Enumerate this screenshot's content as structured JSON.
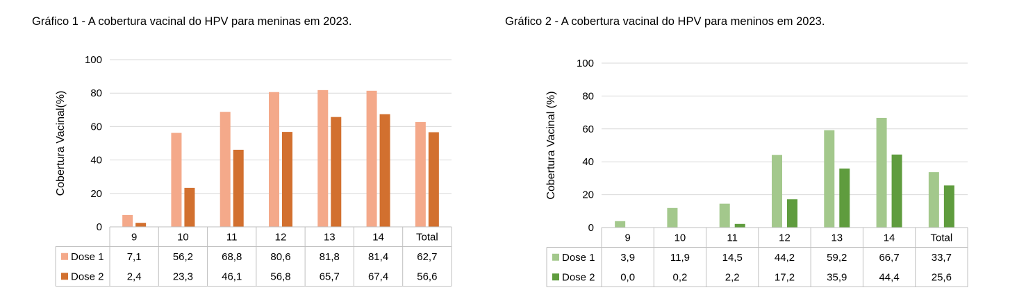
{
  "chart_data": [
    {
      "type": "bar",
      "title": "Gráfico 1 - A cobertura vacinal do HPV para meninas em 2023.",
      "ylabel": "Cobertura Vacinal(%)",
      "xlabel": "",
      "ylim": [
        0,
        100
      ],
      "yticks": [
        "0",
        "20",
        "40",
        "60",
        "80",
        "100"
      ],
      "categories": [
        "9",
        "10",
        "11",
        "12",
        "13",
        "14",
        "Total"
      ],
      "series": [
        {
          "name": "Dose 1",
          "color": "#f4a98a",
          "values": [
            7.1,
            56.2,
            68.8,
            80.6,
            81.8,
            81.4,
            62.7
          ],
          "labels": [
            "7,1",
            "56,2",
            "68,8",
            "80,6",
            "81,8",
            "81,4",
            "62,7"
          ]
        },
        {
          "name": "Dose 2",
          "color": "#d2702f",
          "values": [
            2.4,
            23.3,
            46.1,
            56.8,
            65.7,
            67.4,
            56.6
          ],
          "labels": [
            "2,4",
            "23,3",
            "46,1",
            "56,8",
            "65,7",
            "67,4",
            "56,6"
          ]
        }
      ],
      "grid": true,
      "legend": "data-table"
    },
    {
      "type": "bar",
      "title": "Gráfico 2 - A cobertura vacinal do HPV para meninos em 2023.",
      "ylabel": "Cobertura Vacinal (%)",
      "xlabel": "",
      "ylim": [
        0,
        100
      ],
      "yticks": [
        "0",
        "20",
        "40",
        "60",
        "80",
        "100"
      ],
      "categories": [
        "9",
        "10",
        "11",
        "12",
        "13",
        "14",
        "Total"
      ],
      "series": [
        {
          "name": "Dose 1",
          "color": "#a3c88c",
          "values": [
            3.9,
            11.9,
            14.5,
            44.2,
            59.2,
            66.7,
            33.7
          ],
          "labels": [
            "3,9",
            "11,9",
            "14,5",
            "44,2",
            "59,2",
            "66,7",
            "33,7"
          ]
        },
        {
          "name": "Dose 2",
          "color": "#5f9c3e",
          "values": [
            0.0,
            0.2,
            2.2,
            17.2,
            35.9,
            44.4,
            25.6
          ],
          "labels": [
            "0,0",
            "0,2",
            "2,2",
            "17,2",
            "35,9",
            "44,4",
            "25,6"
          ]
        }
      ],
      "grid": true,
      "legend": "data-table"
    }
  ]
}
